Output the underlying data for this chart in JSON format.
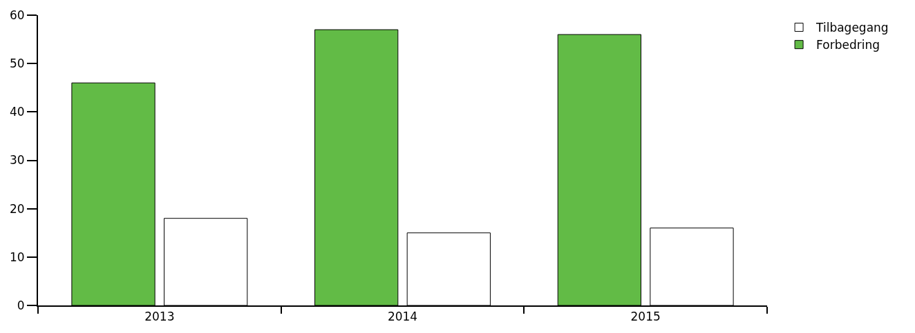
{
  "chart_data": {
    "type": "bar",
    "categories": [
      "2013",
      "2014",
      "2015"
    ],
    "series": [
      {
        "name": "Forbedring",
        "color": "#62bb46",
        "values": [
          46,
          57,
          56
        ]
      },
      {
        "name": "Tilbagegang",
        "color": "#ffffff",
        "values": [
          18,
          15,
          16
        ]
      }
    ],
    "ylim": [
      0,
      60
    ],
    "yticks": [
      0,
      10,
      20,
      30,
      40,
      50,
      60
    ],
    "grid": false,
    "legend": "top right"
  }
}
